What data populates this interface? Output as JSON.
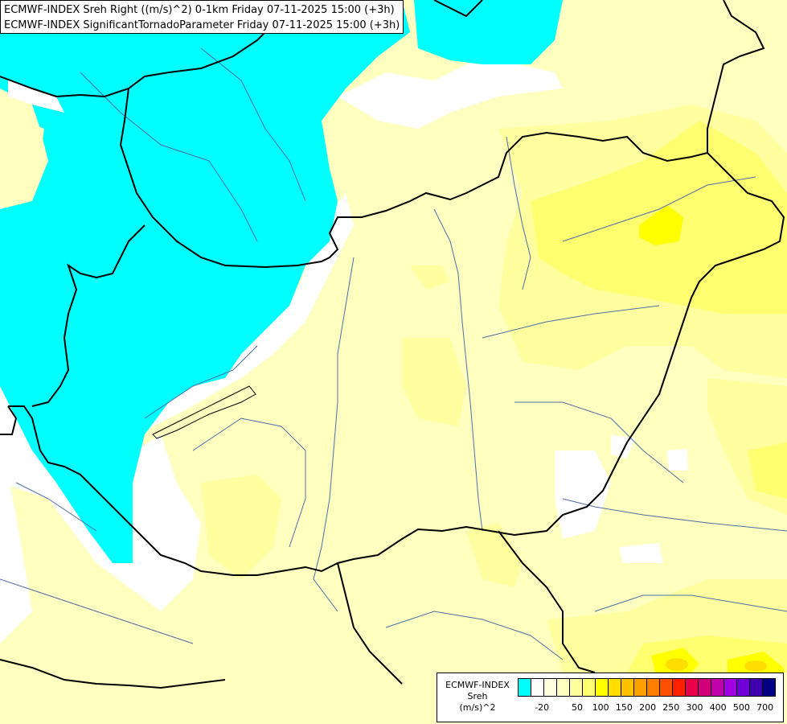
{
  "header": {
    "line1": "ECMWF-INDEX Sreh Right ((m/s)^2) 0-1km Friday 07-11-2025 15:00 (+3h)",
    "line2": "ECMWF-INDEX SignificantTornadoParameter Friday 07-11-2025 15:00 (+3h)"
  },
  "legend": {
    "title": "ECMWF-INDEX",
    "variable": "Sreh",
    "unit": "(m/s)^2",
    "colors": [
      "#00ffff",
      "#ffffff",
      "#ffffe0",
      "#ffffc0",
      "#ffffa0",
      "#ffff70",
      "#ffff00",
      "#ffdd00",
      "#ffc000",
      "#ffa000",
      "#ff7f00",
      "#ff5000",
      "#ff2000",
      "#e8004a",
      "#d0007a",
      "#c000a8",
      "#a000e0",
      "#7000d8",
      "#4000b0",
      "#000080"
    ],
    "ticks": [
      "-20",
      "50",
      "100",
      "150",
      "200",
      "250",
      "300",
      "400",
      "500",
      "700"
    ]
  },
  "colors": {
    "negative_cyan": "#00ffff",
    "light_yellow": "#ffffc0",
    "yellow_mid": "#ffffa0",
    "yellow_strong": "#ffff70",
    "yellow_peak": "#ffff00"
  }
}
